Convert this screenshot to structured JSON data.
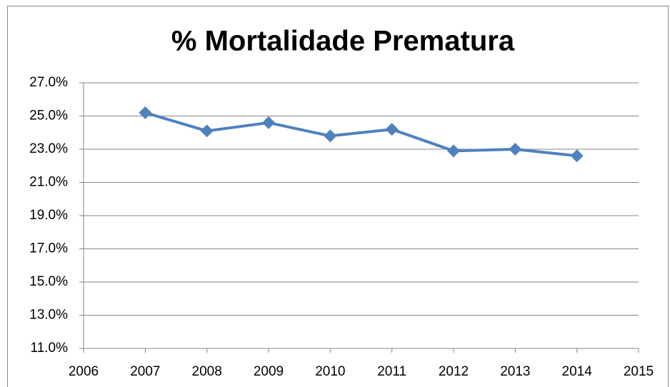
{
  "chart_data": {
    "type": "line",
    "title": "% Mortalidade Prematura",
    "x": [
      2007,
      2008,
      2009,
      2010,
      2011,
      2012,
      2013,
      2014
    ],
    "values": [
      25.2,
      24.1,
      24.6,
      23.8,
      24.2,
      22.9,
      23.0,
      22.6
    ],
    "color": "#4f81bd",
    "xlim": [
      2006,
      2015
    ],
    "xticks": [
      2006,
      2007,
      2008,
      2009,
      2010,
      2011,
      2012,
      2013,
      2014,
      2015
    ],
    "ylim": [
      11,
      27
    ],
    "yticks": [
      {
        "value": 11,
        "label": "11.0%"
      },
      {
        "value": 13,
        "label": "13.0%"
      },
      {
        "value": 15,
        "label": "15.0%"
      },
      {
        "value": 17,
        "label": "17.0%"
      },
      {
        "value": 19,
        "label": "19.0%"
      },
      {
        "value": 21,
        "label": "21.0%"
      },
      {
        "value": 23,
        "label": "23.0%"
      },
      {
        "value": 25,
        "label": "25.0%"
      },
      {
        "value": 27,
        "label": "27.0%"
      }
    ],
    "grid": true,
    "marker": "diamond"
  }
}
